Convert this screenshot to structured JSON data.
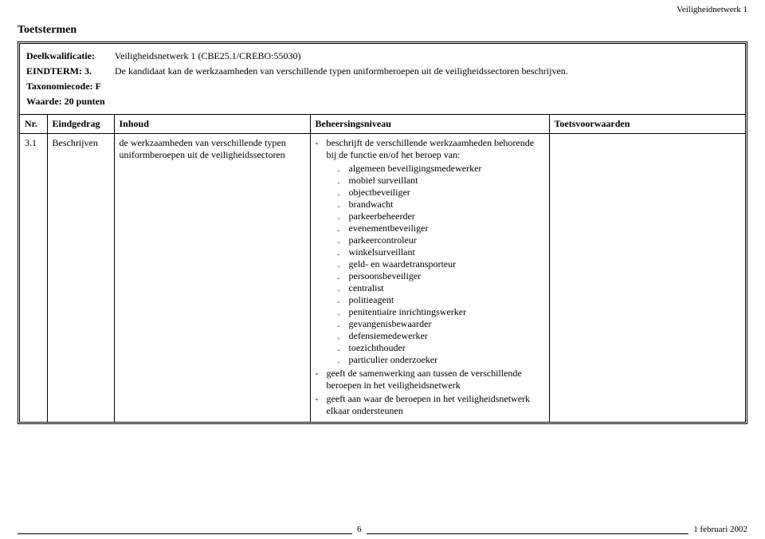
{
  "header": {
    "doc_title_right": "Veiligheidnetwerk 1"
  },
  "title": "Toetstermen",
  "meta": {
    "deelkwalificatie_label": "Deelkwalificatie:",
    "deelkwalificatie_value": "Veiligheidsnetwerk 1 (CBE25.1/CREBO:55030)",
    "eindterm_label": "EINDTERM: 3.",
    "eindterm_value": "De kandidaat kan de werkzaamheden van verschillende typen uniformberoepen uit de veiligheidssectoren beschrijven.",
    "taxonomie_label": "Taxonomiecode: F",
    "waarde_label": "Waarde: 20 punten"
  },
  "columns": {
    "nr": "Nr.",
    "eindgedrag": "Eindgedrag",
    "inhoud": "Inhoud",
    "beheer": "Beheersingsniveau",
    "toets": "Toetsvoorwaarden"
  },
  "row": {
    "nr": "3.1",
    "eindgedrag": "Beschrijven",
    "inhoud": "de werkzaamheden van verschillende typen uniformberoepen uit de veiligheidssectoren",
    "beheer_lead1": "beschrijft de verschillende werkzaamheden behorende bij de functie en/of het beroep van:",
    "beheer_items": [
      "algemeen beveiligingsmedewerker",
      "mobiel surveillant",
      "objectbeveiliger",
      "brandwacht",
      "parkeerbeheerder",
      "evenementbeveiliger",
      "parkeercontroleur",
      "winkelsurveillant",
      "geld- en waardetransporteur",
      "persoonsbeveiliger",
      "centralist",
      "politieagent",
      "penitentiaire inrichtingswerker",
      "gevangenisbewaarder",
      "defensiemedewerker",
      "toezichthouder",
      "particulier onderzoeker"
    ],
    "beheer_lead2": "geeft de samenwerking aan tussen de verschillende beroepen in het veiligheidsnetwerk",
    "beheer_lead3": "geeft aan waar de beroepen in het veiligheidsnetwerk elkaar ondersteunen"
  },
  "footer": {
    "page": "6",
    "date": "1 februari 2002"
  },
  "colwidths": {
    "nr": "34px",
    "eindgedrag": "84px",
    "inhoud": "246px",
    "beheer": "300px",
    "toets": "auto"
  }
}
